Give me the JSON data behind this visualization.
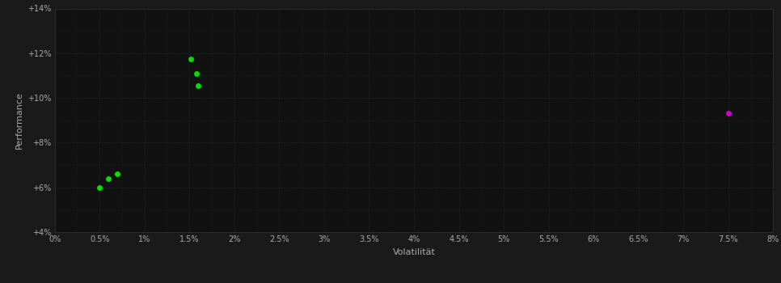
{
  "background_color": "#1a1a1a",
  "plot_bg_color": "#111111",
  "grid_color": "#333333",
  "text_color": "#aaaaaa",
  "xlabel": "Volatilität",
  "ylabel": "Performance",
  "xlim": [
    0.0,
    0.08
  ],
  "ylim": [
    0.04,
    0.14
  ],
  "xticks": [
    0.0,
    0.005,
    0.01,
    0.015,
    0.02,
    0.025,
    0.03,
    0.035,
    0.04,
    0.045,
    0.05,
    0.055,
    0.06,
    0.065,
    0.07,
    0.075,
    0.08
  ],
  "xtick_labels": [
    "0%",
    "0.5%",
    "1%",
    "1.5%",
    "2%",
    "2.5%",
    "3%",
    "3.5%",
    "4%",
    "4.5%",
    "5%",
    "5.5%",
    "6%",
    "6.5%",
    "7%",
    "7.5%",
    "8%"
  ],
  "yticks": [
    0.04,
    0.06,
    0.08,
    0.1,
    0.12,
    0.14
  ],
  "ytick_labels": [
    "+4%",
    "+6%",
    "+8%",
    "+10%",
    "+12%",
    "+14%"
  ],
  "green_points": [
    [
      0.005,
      0.06
    ],
    [
      0.006,
      0.064
    ],
    [
      0.007,
      0.066
    ],
    [
      0.0152,
      0.1175
    ],
    [
      0.0158,
      0.111
    ],
    [
      0.016,
      0.1055
    ]
  ],
  "magenta_points": [
    [
      0.075,
      0.093
    ]
  ],
  "green_color": "#00dd00",
  "magenta_color": "#cc00cc",
  "marker_size": 5
}
